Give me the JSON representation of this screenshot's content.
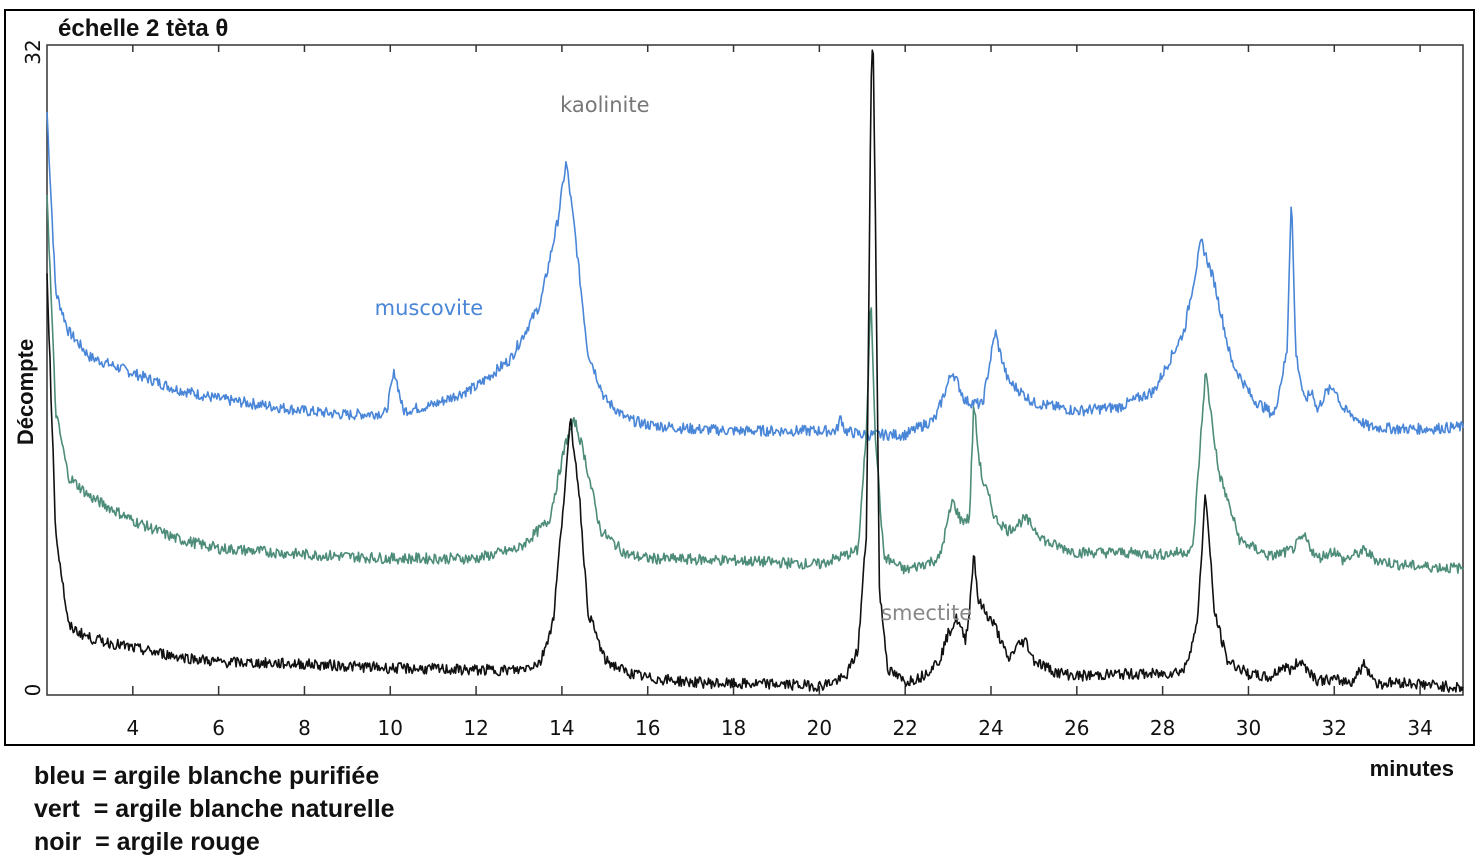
{
  "chart_data": {
    "type": "line",
    "title": "échelle 2 tèta θ",
    "xlabel": "minutes",
    "ylabel": "Décompte",
    "xlim": [
      2,
      35
    ],
    "ylim": [
      0,
      32
    ],
    "x_ticks": [
      4,
      6,
      8,
      10,
      12,
      14,
      16,
      18,
      20,
      22,
      24,
      26,
      28,
      30,
      32,
      34
    ],
    "y_ticks": [
      0,
      32
    ],
    "grid": false,
    "series": [
      {
        "key": "bleu",
        "color": "#4a86d8",
        "x": [
          2.0,
          2.2,
          2.5,
          3.0,
          4.0,
          5.0,
          6.0,
          7.0,
          8.0,
          9.0,
          9.9,
          10.1,
          10.3,
          11.0,
          12.0,
          12.8,
          13.5,
          13.9,
          14.1,
          14.3,
          14.6,
          15.0,
          15.5,
          16.0,
          17.0,
          18.0,
          19.0,
          20.0,
          20.4,
          20.5,
          20.6,
          21.0,
          22.0,
          22.7,
          23.1,
          23.4,
          23.8,
          24.1,
          24.2,
          24.4,
          25.0,
          26.0,
          27.0,
          27.8,
          28.5,
          28.9,
          29.2,
          29.6,
          30.1,
          30.6,
          30.9,
          31.0,
          31.1,
          31.3,
          31.5,
          31.6,
          31.8,
          32.0,
          32.2,
          32.8,
          33.5,
          34.2,
          35.0
        ],
        "y": [
          29.0,
          20.0,
          18.0,
          16.7,
          15.9,
          15.1,
          14.6,
          14.3,
          14.0,
          13.8,
          13.9,
          16.0,
          14.0,
          14.3,
          15.2,
          16.6,
          19.4,
          23.5,
          26.5,
          23.0,
          17.0,
          14.6,
          13.6,
          13.3,
          13.1,
          13.0,
          13.0,
          13.0,
          13.0,
          13.7,
          13.0,
          12.8,
          12.8,
          13.6,
          16.0,
          14.5,
          14.3,
          18.0,
          17.0,
          15.5,
          14.4,
          14.0,
          14.2,
          15.0,
          18.0,
          22.5,
          20.5,
          16.5,
          14.6,
          13.8,
          17.0,
          25.0,
          17.0,
          14.5,
          15.0,
          14.0,
          14.9,
          15.2,
          14.1,
          13.2,
          13.1,
          13.1,
          13.2
        ]
      },
      {
        "key": "vert",
        "color": "#4e8c7a",
        "x": [
          2.0,
          2.2,
          2.5,
          3.0,
          4.0,
          5.0,
          6.0,
          8.0,
          10.0,
          12.0,
          13.0,
          13.7,
          14.1,
          14.3,
          14.5,
          14.9,
          15.5,
          16.0,
          18.0,
          20.0,
          20.9,
          21.1,
          21.2,
          21.3,
          21.5,
          22.0,
          22.8,
          23.1,
          23.3,
          23.5,
          23.6,
          23.7,
          23.8,
          23.9,
          24.1,
          24.4,
          24.8,
          25.3,
          26.0,
          27.0,
          28.0,
          28.7,
          29.0,
          29.3,
          29.8,
          30.5,
          31.0,
          31.3,
          31.6,
          32.0,
          32.2,
          32.7,
          33.0,
          33.5,
          34.0,
          35.0
        ],
        "y": [
          25.0,
          14.0,
          10.7,
          9.7,
          8.5,
          7.6,
          7.1,
          6.8,
          6.6,
          6.6,
          7.1,
          8.5,
          12.5,
          13.5,
          12.0,
          8.0,
          6.8,
          6.6,
          6.5,
          6.3,
          7.0,
          13.0,
          20.0,
          13.0,
          6.7,
          6.0,
          6.6,
          9.5,
          8.5,
          8.6,
          14.5,
          12.0,
          10.5,
          10.0,
          8.6,
          8.0,
          8.6,
          7.4,
          6.9,
          6.9,
          6.8,
          7.0,
          16.0,
          11.0,
          7.5,
          6.7,
          7.0,
          7.7,
          6.6,
          7.0,
          6.5,
          7.0,
          6.5,
          6.3,
          6.2,
          6.1
        ]
      },
      {
        "key": "noir",
        "color": "#111111",
        "x": [
          2.0,
          2.2,
          2.5,
          3.0,
          4.0,
          5.0,
          6.0,
          8.0,
          10.0,
          12.0,
          13.0,
          13.5,
          13.8,
          14.0,
          14.2,
          14.4,
          14.6,
          15.0,
          15.5,
          16.0,
          17.0,
          18.0,
          19.0,
          20.0,
          20.6,
          20.9,
          21.1,
          21.2,
          21.25,
          21.3,
          21.4,
          21.6,
          22.0,
          22.4,
          22.8,
          23.0,
          23.2,
          23.4,
          23.5,
          23.6,
          23.7,
          23.9,
          24.1,
          24.4,
          24.6,
          24.8,
          25.0,
          25.5,
          26.0,
          27.0,
          28.0,
          28.5,
          28.8,
          29.0,
          29.2,
          29.5,
          30.0,
          30.5,
          30.8,
          31.0,
          31.2,
          31.4,
          31.6,
          32.0,
          32.4,
          32.7,
          33.0,
          33.5,
          34.0,
          35.0
        ],
        "y": [
          21.0,
          8.0,
          3.2,
          2.6,
          2.1,
          1.7,
          1.4,
          1.3,
          1.1,
          1.0,
          1.0,
          1.4,
          3.5,
          8.5,
          13.5,
          10.0,
          4.0,
          1.5,
          0.9,
          0.6,
          0.4,
          0.3,
          0.3,
          0.2,
          0.6,
          2.0,
          8.0,
          30.0,
          33.0,
          25.0,
          5.0,
          1.0,
          0.4,
          0.7,
          1.5,
          2.8,
          3.6,
          2.5,
          4.0,
          7.0,
          4.5,
          3.8,
          3.2,
          1.5,
          2.2,
          2.5,
          1.5,
          0.9,
          0.7,
          0.8,
          0.8,
          1.0,
          3.2,
          10.0,
          4.0,
          1.5,
          0.8,
          0.6,
          1.2,
          1.0,
          1.5,
          1.0,
          0.5,
          0.5,
          0.4,
          1.3,
          0.3,
          0.4,
          0.3,
          0.1
        ]
      }
    ],
    "annotations": [
      {
        "text": "muscovite",
        "x": 10.9,
        "y": 18.8,
        "color": "#4a86d8"
      },
      {
        "text": "kaolinite",
        "x": 15.0,
        "y": 29.0,
        "color": "#777777"
      },
      {
        "text": "smectite",
        "x": 22.5,
        "y": 3.5,
        "color": "#888888"
      }
    ]
  },
  "legend_lines": [
    "bleu = argile blanche purifiée",
    "vert  = argile blanche naturelle",
    "noir  = argile rouge"
  ]
}
